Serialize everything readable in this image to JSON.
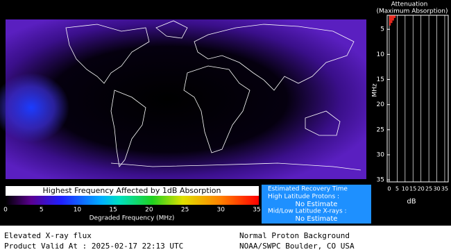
{
  "map": {
    "colorbar": {
      "title": "Highest Frequency Affected by 1dB Absorption",
      "label": "Degraded Frequency (MHz)",
      "lim": [
        0,
        35
      ],
      "ticks": [
        0,
        5,
        10,
        15,
        20,
        25,
        30,
        35
      ]
    },
    "attenuation": {
      "title": "Attenuation",
      "subtitle": "(Maximum Absorption)",
      "ylabel": "MHz",
      "xlabel": "dB",
      "ylim": [
        2.2,
        35.4
      ],
      "yticks": [
        5,
        10,
        15,
        20,
        25,
        30,
        35
      ],
      "xlim": [
        -1.3,
        37.2
      ],
      "xticks": [
        0,
        5,
        10,
        15,
        20,
        25,
        30,
        35
      ],
      "frequencies": [
        2.5,
        3,
        3.5,
        4
      ],
      "values": [
        4,
        3,
        2,
        1
      ],
      "color": "#e8281e"
    },
    "recovery": {
      "title": "Estimated Recovery Time",
      "high_label": "High Latitude Protons :",
      "high_value": "No Estimate",
      "mid_label": "Mid/Low Latitude X-rays :",
      "mid_value": "No Estimate"
    },
    "footer": {
      "left_1": "Elevated X-ray flux",
      "left_2": "Product Valid At : 2025-02-17 22:13 UTC",
      "right_1": "Normal Proton Background",
      "right_2": "NOAA/SWPC Boulder, CO USA"
    }
  }
}
